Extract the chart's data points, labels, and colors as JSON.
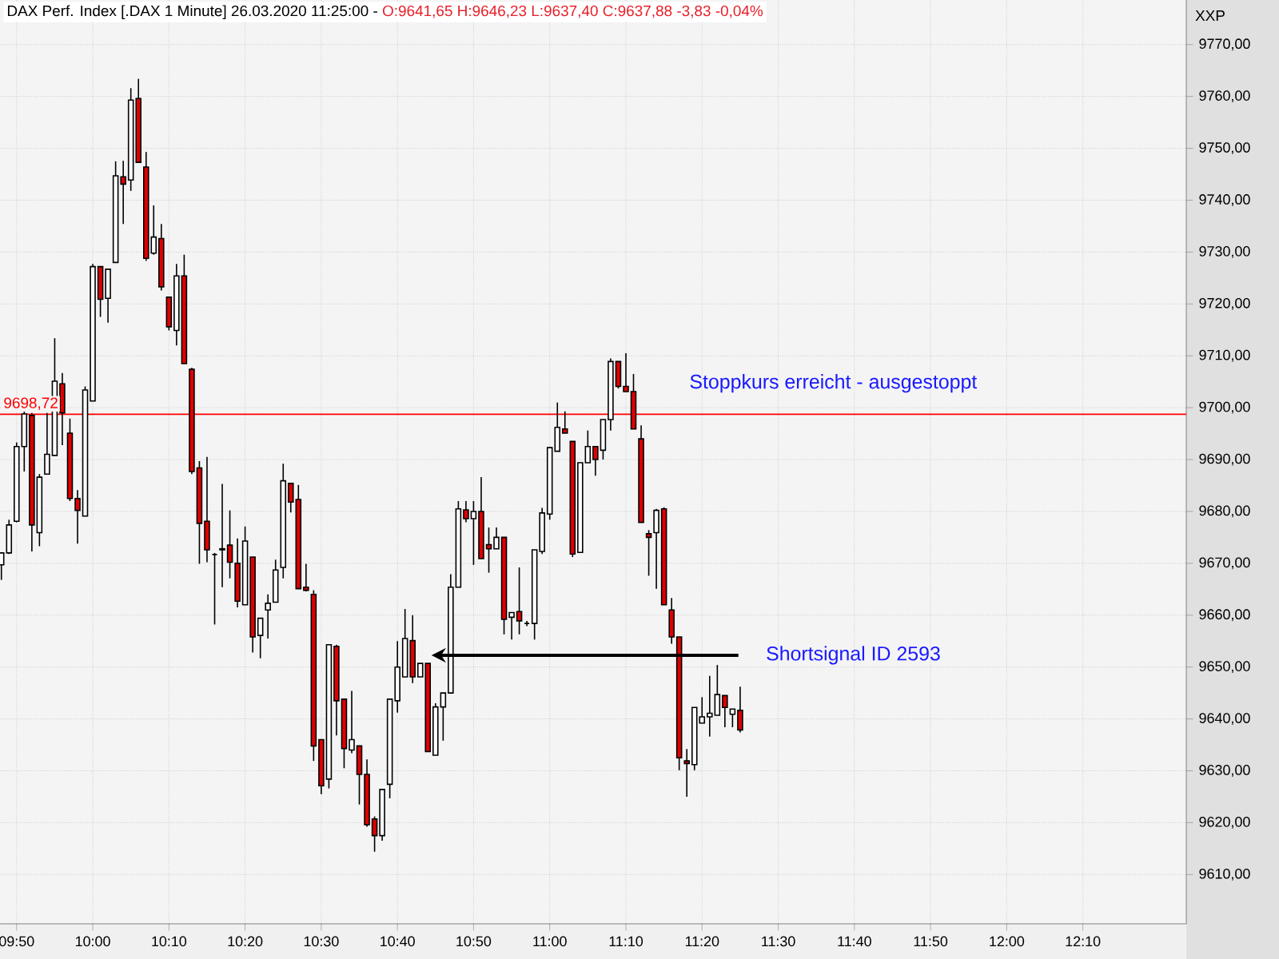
{
  "chart_data": {
    "type": "candlestick",
    "title": "DAX Perf. Index [.DAX  1 Minute] 26.03.2020 11:25:00 -",
    "subtitle": "O:9641,65 H:9646,23 L:9637,40 C:9637,88 -3,83 -0,04%",
    "ylabel": "XXP",
    "x": [
      9.8,
      9.8167,
      9.8333,
      9.85,
      9.8667,
      9.8833,
      9.9,
      9.9167,
      9.9333,
      9.95,
      9.9667,
      9.9833,
      10,
      10.0167,
      10.0333,
      10.05,
      10.0667,
      10.0833,
      10.1,
      10.1167,
      10.1333,
      10.15,
      10.1667,
      10.1833,
      10.2,
      10.2167,
      10.2333,
      10.25,
      10.2667,
      10.2833,
      10.3,
      10.3167,
      10.3333,
      10.35,
      10.3667,
      10.3833,
      10.4,
      10.4167,
      10.4333,
      10.45,
      10.4667,
      10.4833,
      10.5,
      10.5167,
      10.5333,
      10.55,
      10.5667,
      10.5833,
      10.6,
      10.6167,
      10.6333,
      10.65,
      10.6667,
      10.6833,
      10.7,
      10.7167,
      10.7333,
      10.75,
      10.7667,
      10.7833,
      10.8,
      10.8167,
      10.8333,
      10.85,
      10.8667,
      10.8833,
      10.9,
      10.9167,
      10.9333,
      10.95,
      10.9667,
      10.9833,
      11,
      11.0167,
      11.0333,
      11.05,
      11.0667,
      11.0833,
      11.1,
      11.1167,
      11.1333,
      11.15,
      11.1667,
      11.1833,
      11.2,
      11.2167,
      11.2333,
      11.25,
      11.2667,
      11.2833,
      11.3,
      11.3167,
      11.3333,
      11.35,
      11.3667,
      11.3833,
      11.4,
      11.4167
    ],
    "ohlc": [
      [
        9669.7,
        9672.0,
        9666.8,
        9672.0
      ],
      [
        9672.0,
        9678.4,
        9671.8,
        9677.4
      ],
      [
        9678.1,
        9693.3,
        9677.9,
        9692.5
      ],
      [
        9692.5,
        9699.5,
        9687.7,
        9698.8
      ],
      [
        9698.5,
        9699.0,
        9672.3,
        9677.4
      ],
      [
        9675.9,
        9687.2,
        9673.3,
        9686.6
      ],
      [
        9687.2,
        9699.0,
        9687.2,
        9691.0
      ],
      [
        9690.8,
        9713.4,
        9690.8,
        9705.1
      ],
      [
        9704.6,
        9706.7,
        9692.8,
        9699.0
      ],
      [
        9695.1,
        9697.9,
        9682.0,
        9682.5
      ],
      [
        9682.5,
        9684.1,
        9673.8,
        9680.2
      ],
      [
        9679.1,
        9704.1,
        9679.1,
        9703.4
      ],
      [
        9701.3,
        9727.7,
        9701.3,
        9727.2
      ],
      [
        9727.2,
        9727.2,
        9717.5,
        9720.9
      ],
      [
        9721.1,
        9726.7,
        9716.4,
        9726.7
      ],
      [
        9728.0,
        9747.5,
        9728.0,
        9744.7
      ],
      [
        9744.5,
        9747.6,
        9735.4,
        9743.1
      ],
      [
        9743.9,
        9761.6,
        9741.8,
        9759.3
      ],
      [
        9759.6,
        9763.4,
        9747.3,
        9747.3
      ],
      [
        9746.4,
        9749.3,
        9728.3,
        9728.8
      ],
      [
        9729.8,
        9739.0,
        9729.5,
        9732.9
      ],
      [
        9732.6,
        9735.4,
        9722.6,
        9723.3
      ],
      [
        9721.3,
        9721.3,
        9714.9,
        9715.6
      ],
      [
        9714.9,
        9727.7,
        9712.0,
        9725.4
      ],
      [
        9725.4,
        9729.5,
        9708.5,
        9708.5
      ],
      [
        9707.4,
        9707.7,
        9687.2,
        9687.7
      ],
      [
        9688.4,
        9689.7,
        9669.9,
        9677.7
      ],
      [
        9678.1,
        9690.5,
        9670.2,
        9672.6
      ],
      [
        9671.7,
        9672.0,
        9658.2,
        9671.7
      ],
      [
        9672.6,
        9685.3,
        9665.4,
        9672.8
      ],
      [
        9673.5,
        9680.2,
        9667.1,
        9670.2
      ],
      [
        9670.0,
        9674.8,
        9661.5,
        9662.7
      ],
      [
        9662.0,
        9677.1,
        9662.0,
        9674.3
      ],
      [
        9671.2,
        9671.2,
        9652.8,
        9655.8
      ],
      [
        9656.1,
        9659.4,
        9651.7,
        9659.4
      ],
      [
        9661.0,
        9664.0,
        9655.5,
        9662.3
      ],
      [
        9662.5,
        9670.7,
        9662.5,
        9668.7
      ],
      [
        9669.2,
        9689.2,
        9667.1,
        9685.9
      ],
      [
        9685.4,
        9685.4,
        9679.8,
        9681.8
      ],
      [
        9682.3,
        9685.1,
        9665.1,
        9665.1
      ],
      [
        9665.4,
        9669.9,
        9664.6,
        9664.8
      ],
      [
        9664.0,
        9664.8,
        9631.9,
        9634.8
      ],
      [
        9636.0,
        9636.0,
        9625.5,
        9627.1
      ],
      [
        9628.4,
        9654.3,
        9626.6,
        9654.3
      ],
      [
        9654.0,
        9654.3,
        9636.8,
        9643.5
      ],
      [
        9643.8,
        9643.8,
        9630.5,
        9634.3
      ],
      [
        9634.0,
        9645.4,
        9633.4,
        9636.0
      ],
      [
        9634.8,
        9634.8,
        9623.5,
        9629.3
      ],
      [
        9629.3,
        9632.2,
        9619.2,
        9619.6
      ],
      [
        9620.7,
        9621.2,
        9614.4,
        9617.5
      ],
      [
        9617.5,
        9626.4,
        9616.5,
        9626.4
      ],
      [
        9627.4,
        9643.8,
        9624.7,
        9643.8
      ],
      [
        9643.5,
        9655.0,
        9641.2,
        9650.0
      ],
      [
        9648.1,
        9661.2,
        9648.1,
        9655.5
      ],
      [
        9655.1,
        9660.0,
        9646.9,
        9648.1
      ],
      [
        9648.1,
        9650.7,
        9648.1,
        9650.7
      ],
      [
        9650.7,
        9650.7,
        9633.7,
        9633.7
      ],
      [
        9633.0,
        9643.0,
        9633.0,
        9642.3
      ],
      [
        9642.3,
        9645.0,
        9635.8,
        9645.0
      ],
      [
        9645.0,
        9667.9,
        9645.0,
        9665.4
      ],
      [
        9665.4,
        9682.0,
        9665.4,
        9680.5
      ],
      [
        9680.3,
        9682.0,
        9677.9,
        9678.6
      ],
      [
        9678.6,
        9682.0,
        9669.7,
        9680.0
      ],
      [
        9680.0,
        9686.6,
        9670.9,
        9670.9
      ],
      [
        9673.6,
        9676.9,
        9668.2,
        9672.8
      ],
      [
        9672.8,
        9676.9,
        9672.8,
        9675.0
      ],
      [
        9675.0,
        9675.0,
        9656.3,
        9659.2
      ],
      [
        9659.6,
        9660.5,
        9655.3,
        9660.5
      ],
      [
        9660.7,
        9669.2,
        9656.3,
        9658.9
      ],
      [
        9658.4,
        9658.9,
        9657.9,
        9658.4
      ],
      [
        9658.4,
        9672.6,
        9655.3,
        9672.6
      ],
      [
        9672.3,
        9680.7,
        9671.8,
        9679.7
      ],
      [
        9679.5,
        9692.3,
        9678.4,
        9692.3
      ],
      [
        9691.6,
        9701.0,
        9691.6,
        9696.2
      ],
      [
        9695.9,
        9699.3,
        9695.1,
        9695.1
      ],
      [
        9693.5,
        9693.5,
        9671.2,
        9671.8
      ],
      [
        9672.1,
        9689.4,
        9672.1,
        9689.4
      ],
      [
        9689.4,
        9695.6,
        9689.4,
        9692.5
      ],
      [
        9692.5,
        9692.5,
        9686.9,
        9690.0
      ],
      [
        9691.8,
        9697.7,
        9690.0,
        9697.7
      ],
      [
        9697.7,
        9709.5,
        9695.6,
        9708.9
      ],
      [
        9708.9,
        9708.9,
        9703.7,
        9704.1
      ],
      [
        9704.1,
        9710.5,
        9703.1,
        9703.1
      ],
      [
        9703.1,
        9706.5,
        9695.9,
        9695.9
      ],
      [
        9694.0,
        9696.6,
        9677.9,
        9677.9
      ],
      [
        9675.7,
        9676.4,
        9667.6,
        9675.0
      ],
      [
        9675.9,
        9680.5,
        9665.1,
        9680.2
      ],
      [
        9680.5,
        9680.8,
        9662.0,
        9662.0
      ],
      [
        9661.0,
        9663.3,
        9654.5,
        9655.8
      ],
      [
        9655.8,
        9655.8,
        9630.1,
        9632.5
      ],
      [
        9631.9,
        9634.2,
        9625.0,
        9631.4
      ],
      [
        9631.2,
        9642.2,
        9630.1,
        9642.2
      ],
      [
        9639.2,
        9644.2,
        9639.2,
        9640.4
      ],
      [
        9640.4,
        9648.3,
        9636.6,
        9641.1
      ],
      [
        9640.7,
        9650.4,
        9640.7,
        9644.7
      ],
      [
        9644.5,
        9644.5,
        9638.4,
        9642.2
      ],
      [
        9640.9,
        9641.9,
        9638.4,
        9641.9
      ],
      [
        9641.65,
        9646.23,
        9637.4,
        9637.88
      ]
    ],
    "xlim": [
      9.797,
      12.393
    ],
    "ylim": [
      9600.5,
      9778.6
    ],
    "xticks": [
      {
        "value": 9.8333,
        "label": "09:50"
      },
      {
        "value": 10,
        "label": "10:00"
      },
      {
        "value": 10.1667,
        "label": "10:10"
      },
      {
        "value": 10.3333,
        "label": "10:20"
      },
      {
        "value": 10.5,
        "label": "10:30"
      },
      {
        "value": 10.6667,
        "label": "10:40"
      },
      {
        "value": 10.8333,
        "label": "10:50"
      },
      {
        "value": 11,
        "label": "11:00"
      },
      {
        "value": 11.1667,
        "label": "11:10"
      },
      {
        "value": 11.3333,
        "label": "11:20"
      },
      {
        "value": 11.5,
        "label": "11:30"
      },
      {
        "value": 11.6667,
        "label": "11:40"
      },
      {
        "value": 11.8333,
        "label": "11:50"
      },
      {
        "value": 12,
        "label": "12:00"
      },
      {
        "value": 12.1667,
        "label": "12:10"
      }
    ],
    "yticks": [
      {
        "value": 9610,
        "label": "9610,00"
      },
      {
        "value": 9620,
        "label": "9620,00"
      },
      {
        "value": 9630,
        "label": "9630,00"
      },
      {
        "value": 9640,
        "label": "9640,00"
      },
      {
        "value": 9650,
        "label": "9650,00"
      },
      {
        "value": 9660,
        "label": "9660,00"
      },
      {
        "value": 9670,
        "label": "9670,00"
      },
      {
        "value": 9680,
        "label": "9680,00"
      },
      {
        "value": 9690,
        "label": "9690,00"
      },
      {
        "value": 9700,
        "label": "9700,00"
      },
      {
        "value": 9710,
        "label": "9710,00"
      },
      {
        "value": 9720,
        "label": "9720,00"
      },
      {
        "value": 9730,
        "label": "9730,00"
      },
      {
        "value": 9740,
        "label": "9740,00"
      },
      {
        "value": 9750,
        "label": "9750,00"
      },
      {
        "value": 9760,
        "label": "9760,00"
      },
      {
        "value": 9770,
        "label": "9770,00"
      }
    ],
    "grid": true,
    "ref_lines": [
      {
        "axis": "y",
        "value": 9698.72,
        "label": "9698,72",
        "color": "#ff0000"
      }
    ],
    "annotations": [
      "Stoppkurs erreicht - ausgestoppt",
      "Shortsignal ID 2593"
    ]
  }
}
